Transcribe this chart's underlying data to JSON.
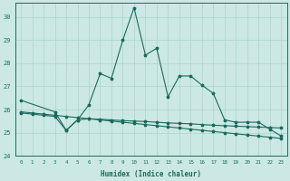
{
  "xlabel": "Humidex (Indice chaleur)",
  "x_values": [
    0,
    1,
    2,
    3,
    4,
    5,
    6,
    7,
    8,
    9,
    10,
    11,
    12,
    13,
    14,
    15,
    16,
    17,
    18,
    19,
    20,
    21,
    22,
    23
  ],
  "line_main_y": [
    26.4,
    null,
    null,
    25.9,
    25.1,
    25.55,
    26.2,
    27.55,
    27.35,
    29.0,
    30.4,
    28.35,
    28.65,
    26.55,
    27.45,
    27.45,
    27.05,
    26.7,
    25.55,
    25.45,
    25.45,
    25.45,
    25.15,
    24.85
  ],
  "line_mid_y": [
    25.9,
    25.85,
    25.8,
    25.75,
    25.7,
    25.65,
    25.6,
    25.58,
    25.55,
    25.52,
    25.5,
    25.48,
    25.45,
    25.42,
    25.4,
    25.38,
    25.35,
    25.32,
    25.3,
    25.28,
    25.26,
    25.24,
    25.22,
    25.2
  ],
  "line_low_y": [
    25.85,
    25.8,
    25.75,
    25.7,
    25.1,
    25.55,
    25.6,
    25.55,
    25.5,
    25.45,
    25.4,
    25.35,
    25.3,
    25.25,
    25.2,
    25.15,
    25.1,
    25.05,
    25.0,
    24.95,
    24.9,
    24.85,
    24.8,
    24.75
  ],
  "bg_color": "#cce8e4",
  "grid_color": "#aad4ce",
  "line_color": "#1a6b5e",
  "ylim_min": 24.0,
  "ylim_max": 30.6,
  "yticks": [
    24,
    25,
    26,
    27,
    28,
    29,
    30
  ],
  "xlim_min": -0.5,
  "xlim_max": 23.5
}
